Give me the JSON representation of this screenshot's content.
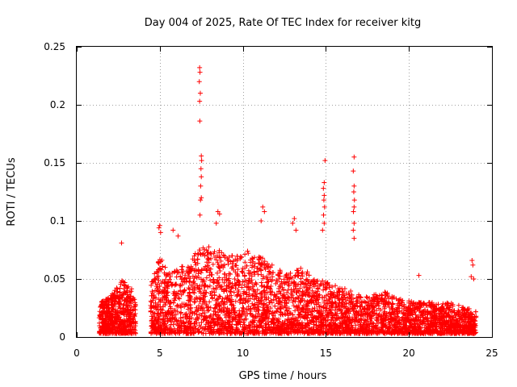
{
  "chart_data": {
    "type": "scatter",
    "title": "Day 004 of 2025, Rate Of TEC Index for receiver kitg",
    "xlabel": "GPS time / hours",
    "ylabel": "ROTI / TECUs",
    "xlim": [
      0,
      25
    ],
    "ylim": [
      0,
      0.25
    ],
    "x_ticks": [
      0,
      5,
      10,
      15,
      20,
      25
    ],
    "x_tick_labels": [
      "0",
      "5",
      "10",
      "15",
      "20",
      "25"
    ],
    "y_ticks": [
      0,
      0.05,
      0.1,
      0.15,
      0.2,
      0.25
    ],
    "y_tick_labels": [
      "0",
      "0.05",
      "0.1",
      "0.15",
      "0.2",
      "0.25"
    ],
    "grid": true,
    "marker": "plus",
    "color": "#ff0000",
    "series": [
      {
        "name": "ROTI",
        "points": [
          [
            2.7,
            0.081
          ],
          [
            7.4,
            0.232
          ],
          [
            7.42,
            0.228
          ],
          [
            7.38,
            0.22
          ],
          [
            7.44,
            0.21
          ],
          [
            7.4,
            0.203
          ],
          [
            7.41,
            0.186
          ],
          [
            7.5,
            0.156
          ],
          [
            7.52,
            0.152
          ],
          [
            7.48,
            0.145
          ],
          [
            7.5,
            0.138
          ],
          [
            7.46,
            0.13
          ],
          [
            7.5,
            0.12
          ],
          [
            7.45,
            0.118
          ],
          [
            7.42,
            0.105
          ],
          [
            8.5,
            0.108
          ],
          [
            8.6,
            0.106
          ],
          [
            8.4,
            0.098
          ],
          [
            5.0,
            0.096
          ],
          [
            4.95,
            0.094
          ],
          [
            5.05,
            0.09
          ],
          [
            5.8,
            0.092
          ],
          [
            6.1,
            0.087
          ],
          [
            11.2,
            0.112
          ],
          [
            11.3,
            0.108
          ],
          [
            11.1,
            0.1
          ],
          [
            13.1,
            0.102
          ],
          [
            13.0,
            0.098
          ],
          [
            13.2,
            0.092
          ],
          [
            14.95,
            0.152
          ],
          [
            14.9,
            0.133
          ],
          [
            14.85,
            0.128
          ],
          [
            14.9,
            0.122
          ],
          [
            14.88,
            0.118
          ],
          [
            14.92,
            0.112
          ],
          [
            14.86,
            0.105
          ],
          [
            14.9,
            0.098
          ],
          [
            14.8,
            0.092
          ],
          [
            16.7,
            0.155
          ],
          [
            16.65,
            0.143
          ],
          [
            16.7,
            0.13
          ],
          [
            16.68,
            0.125
          ],
          [
            16.72,
            0.118
          ],
          [
            16.7,
            0.112
          ],
          [
            16.66,
            0.108
          ],
          [
            16.7,
            0.098
          ],
          [
            16.65,
            0.092
          ],
          [
            16.7,
            0.085
          ],
          [
            20.6,
            0.053
          ],
          [
            23.8,
            0.066
          ],
          [
            23.85,
            0.062
          ],
          [
            23.75,
            0.052
          ],
          [
            23.9,
            0.05
          ]
        ]
      }
    ],
    "cloud_segments": [
      {
        "x0": 1.35,
        "x1": 3.25,
        "env": [
          [
            1.35,
            0.03
          ],
          [
            2.0,
            0.035
          ],
          [
            2.5,
            0.045
          ],
          [
            2.8,
            0.05
          ],
          [
            3.25,
            0.04
          ]
        ],
        "n": 520
      },
      {
        "x0": 3.25,
        "x1": 3.55,
        "env": [
          [
            3.25,
            0.045
          ],
          [
            3.55,
            0.03
          ]
        ],
        "n": 60
      },
      {
        "x0": 4.45,
        "x1": 24.05,
        "env": [
          [
            4.45,
            0.045
          ],
          [
            5.0,
            0.07
          ],
          [
            5.5,
            0.055
          ],
          [
            6.0,
            0.06
          ],
          [
            6.8,
            0.065
          ],
          [
            7.5,
            0.08
          ],
          [
            8.5,
            0.075
          ],
          [
            9.5,
            0.07
          ],
          [
            10.5,
            0.075
          ],
          [
            11.5,
            0.065
          ],
          [
            12.5,
            0.055
          ],
          [
            13.5,
            0.06
          ],
          [
            14.5,
            0.05
          ],
          [
            15.5,
            0.045
          ],
          [
            16.5,
            0.04
          ],
          [
            17.5,
            0.035
          ],
          [
            18.5,
            0.04
          ],
          [
            19.5,
            0.033
          ],
          [
            20.5,
            0.03
          ],
          [
            21.5,
            0.03
          ],
          [
            22.5,
            0.03
          ],
          [
            23.5,
            0.025
          ],
          [
            24.05,
            0.022
          ]
        ],
        "n": 3800
      }
    ]
  }
}
